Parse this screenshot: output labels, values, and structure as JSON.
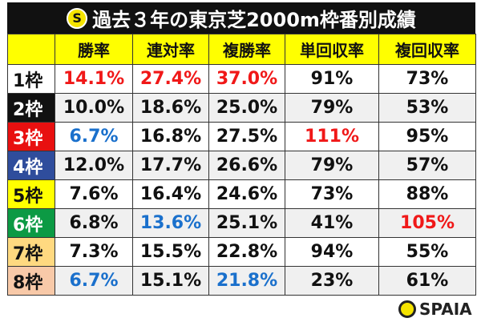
{
  "title": "過去３年の東京芝2000m枠番別成績",
  "logo_icon": "spaia-s-logo-icon",
  "headers": [
    "",
    "勝率",
    "連対率",
    "複勝率",
    "単回収率",
    "複回収率"
  ],
  "colors": {
    "header_bg": "#ffff00",
    "red": "#f01818",
    "blue": "#1a70cc"
  },
  "rows": [
    {
      "label": "1枠",
      "bg": "#ffffff",
      "fg": "#111111",
      "cells": [
        {
          "v": "14.1%",
          "c": "red"
        },
        {
          "v": "27.4%",
          "c": "red"
        },
        {
          "v": "37.0%",
          "c": "red"
        },
        {
          "v": "91%",
          "c": ""
        },
        {
          "v": "73%",
          "c": ""
        }
      ]
    },
    {
      "label": "2枠",
      "bg": "#111111",
      "fg": "#ffffff",
      "cells": [
        {
          "v": "10.0%",
          "c": ""
        },
        {
          "v": "18.6%",
          "c": ""
        },
        {
          "v": "25.0%",
          "c": ""
        },
        {
          "v": "79%",
          "c": ""
        },
        {
          "v": "53%",
          "c": ""
        }
      ]
    },
    {
      "label": "3枠",
      "bg": "#e81010",
      "fg": "#ffffff",
      "cells": [
        {
          "v": "6.7%",
          "c": "blue"
        },
        {
          "v": "16.8%",
          "c": ""
        },
        {
          "v": "27.5%",
          "c": ""
        },
        {
          "v": "111%",
          "c": "red"
        },
        {
          "v": "95%",
          "c": ""
        }
      ]
    },
    {
      "label": "4枠",
      "bg": "#2f4d9c",
      "fg": "#ffffff",
      "cells": [
        {
          "v": "12.0%",
          "c": ""
        },
        {
          "v": "17.7%",
          "c": ""
        },
        {
          "v": "26.6%",
          "c": ""
        },
        {
          "v": "79%",
          "c": ""
        },
        {
          "v": "57%",
          "c": ""
        }
      ]
    },
    {
      "label": "5枠",
      "bg": "#ffff00",
      "fg": "#111111",
      "cells": [
        {
          "v": "7.6%",
          "c": ""
        },
        {
          "v": "16.4%",
          "c": ""
        },
        {
          "v": "24.6%",
          "c": ""
        },
        {
          "v": "73%",
          "c": ""
        },
        {
          "v": "88%",
          "c": ""
        }
      ]
    },
    {
      "label": "6枠",
      "bg": "#0c9a44",
      "fg": "#ffffff",
      "cells": [
        {
          "v": "6.8%",
          "c": ""
        },
        {
          "v": "13.6%",
          "c": "blue"
        },
        {
          "v": "25.1%",
          "c": ""
        },
        {
          "v": "41%",
          "c": ""
        },
        {
          "v": "105%",
          "c": "red"
        }
      ]
    },
    {
      "label": "7枠",
      "bg": "#ffd980",
      "fg": "#111111",
      "cells": [
        {
          "v": "7.3%",
          "c": ""
        },
        {
          "v": "15.5%",
          "c": ""
        },
        {
          "v": "22.8%",
          "c": ""
        },
        {
          "v": "94%",
          "c": ""
        },
        {
          "v": "55%",
          "c": ""
        }
      ]
    },
    {
      "label": "8枠",
      "bg": "#f8c9a8",
      "fg": "#111111",
      "cells": [
        {
          "v": "6.7%",
          "c": "blue"
        },
        {
          "v": "15.1%",
          "c": ""
        },
        {
          "v": "21.8%",
          "c": "blue"
        },
        {
          "v": "23%",
          "c": ""
        },
        {
          "v": "61%",
          "c": ""
        }
      ]
    }
  ],
  "brand": "SPAIA"
}
